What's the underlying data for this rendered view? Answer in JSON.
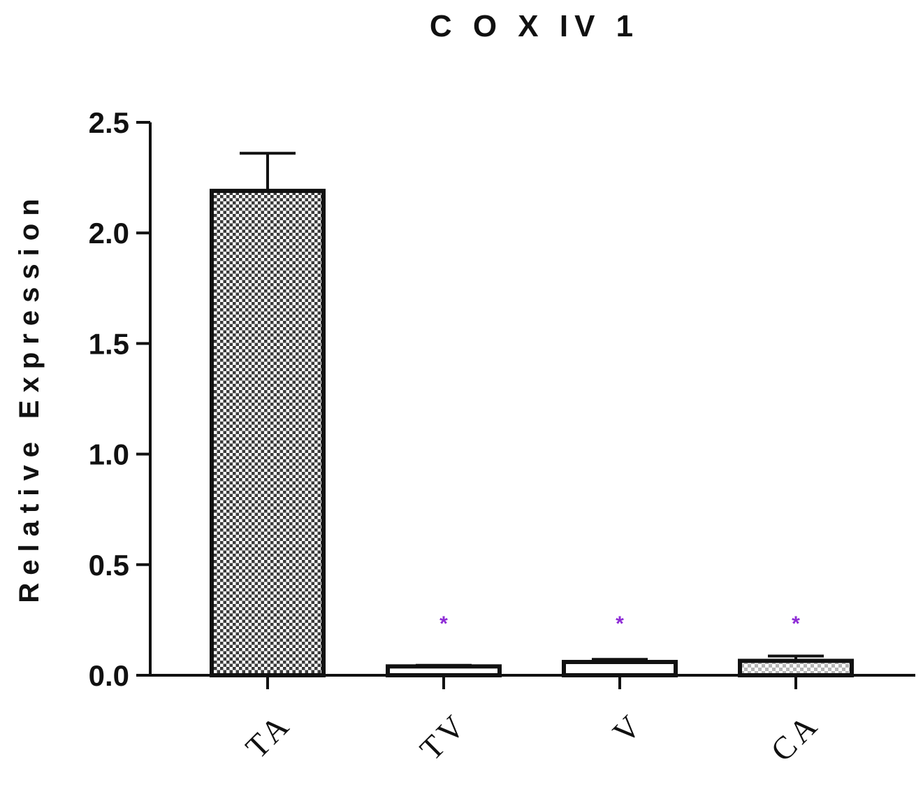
{
  "chart_data": {
    "type": "bar",
    "title": "C O X IV 1",
    "xlabel": "",
    "ylabel": "Relative Expression",
    "ylim": [
      0,
      2.5
    ],
    "yticks": [
      "0.0",
      "0.5",
      "1.0",
      "1.5",
      "2.0",
      "2.5"
    ],
    "categories": [
      "TA",
      "TV",
      "V",
      "CA"
    ],
    "values": [
      2.19,
      0.04,
      0.06,
      0.065
    ],
    "errors": [
      0.17,
      0.005,
      0.012,
      0.022
    ],
    "significance": [
      "",
      "*",
      "*",
      "*"
    ],
    "significance_color": "#8e2bd6",
    "bar_patterns": [
      "dense-checker",
      "light-dash",
      "plain",
      "light-checker"
    ],
    "grid": false,
    "legend": "none"
  }
}
